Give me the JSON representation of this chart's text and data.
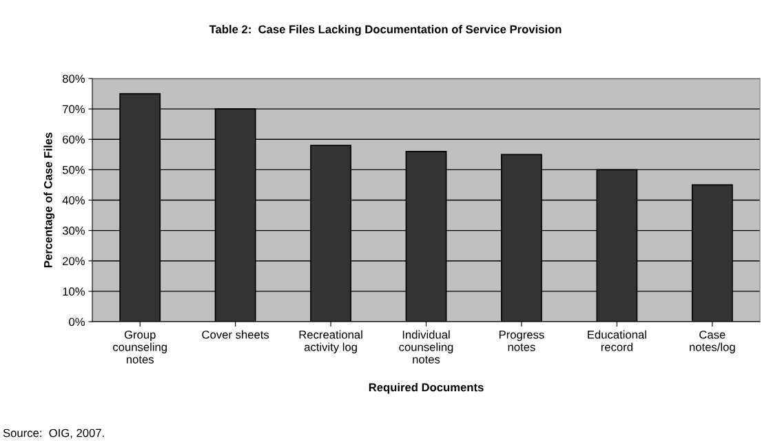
{
  "chart_data": {
    "type": "bar",
    "title": "Table 2:  Case Files Lacking Documentation of Service Provision",
    "xlabel": "Required Documents",
    "ylabel": "Percentage of Case Files",
    "categories": [
      "Group\ncounseling\nnotes",
      "Cover sheets",
      "Recreational\nactivity log",
      "Individual\ncounseling\nnotes",
      "Progress\nnotes",
      "Educational\nrecord",
      "Case\nnotes/log"
    ],
    "values": [
      75,
      70,
      58,
      56,
      55,
      50,
      45
    ],
    "color": "#333333",
    "ylim": [
      0,
      80
    ],
    "yticks": [
      {
        "value": 0,
        "label": "0%"
      },
      {
        "value": 10,
        "label": "10%"
      },
      {
        "value": 20,
        "label": "20%"
      },
      {
        "value": 30,
        "label": "30%"
      },
      {
        "value": 40,
        "label": "40%"
      },
      {
        "value": 50,
        "label": "50%"
      },
      {
        "value": 60,
        "label": "60%"
      },
      {
        "value": 70,
        "label": "70%"
      },
      {
        "value": 80,
        "label": "80%"
      }
    ],
    "grid": "y",
    "annotations": [
      "Source:  OIG, 2007."
    ]
  }
}
